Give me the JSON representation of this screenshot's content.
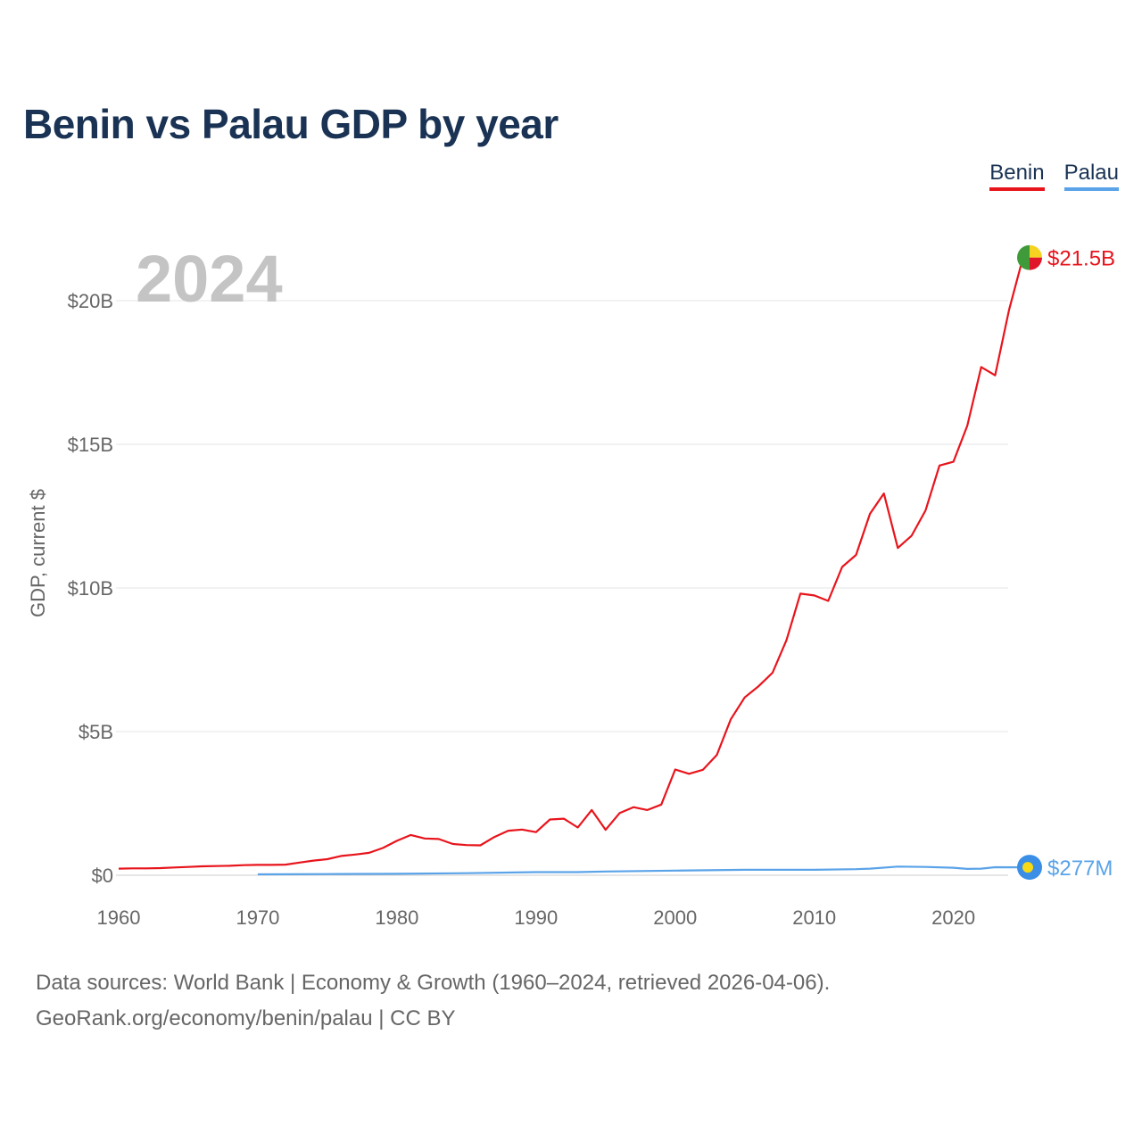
{
  "chart_data": {
    "type": "line",
    "title": "Benin vs Palau GDP by year",
    "ylabel": "GDP, current $",
    "xlabel": "",
    "highlight_year": "2024",
    "xlim": [
      1960,
      2024
    ],
    "ylim": [
      0,
      22000000000
    ],
    "x_ticks": [
      {
        "value": 1960,
        "label": "1960"
      },
      {
        "value": 1970,
        "label": "1970"
      },
      {
        "value": 1980,
        "label": "1980"
      },
      {
        "value": 1990,
        "label": "1990"
      },
      {
        "value": 2000,
        "label": "2000"
      },
      {
        "value": 2010,
        "label": "2010"
      },
      {
        "value": 2020,
        "label": "2020"
      }
    ],
    "y_ticks": [
      {
        "value": 0,
        "label": "$0"
      },
      {
        "value": 5000000000,
        "label": "$5B"
      },
      {
        "value": 10000000000,
        "label": "$10B"
      },
      {
        "value": 15000000000,
        "label": "$15B"
      },
      {
        "value": 20000000000,
        "label": "$20B"
      }
    ],
    "series": [
      {
        "name": "Benin",
        "color": "#e8141c",
        "end_label": "$21.5B",
        "marker": "benin-flag-icon",
        "points": [
          [
            1960,
            0.23
          ],
          [
            1961,
            0.24
          ],
          [
            1962,
            0.24
          ],
          [
            1963,
            0.25
          ],
          [
            1964,
            0.27
          ],
          [
            1965,
            0.29
          ],
          [
            1966,
            0.31
          ],
          [
            1967,
            0.32
          ],
          [
            1968,
            0.33
          ],
          [
            1969,
            0.35
          ],
          [
            1970,
            0.36
          ],
          [
            1971,
            0.36
          ],
          [
            1972,
            0.37
          ],
          [
            1973,
            0.44
          ],
          [
            1974,
            0.51
          ],
          [
            1975,
            0.56
          ],
          [
            1976,
            0.67
          ],
          [
            1977,
            0.72
          ],
          [
            1978,
            0.78
          ],
          [
            1979,
            0.95
          ],
          [
            1980,
            1.2
          ],
          [
            1981,
            1.4
          ],
          [
            1982,
            1.28
          ],
          [
            1983,
            1.26
          ],
          [
            1984,
            1.09
          ],
          [
            1985,
            1.05
          ],
          [
            1986,
            1.04
          ],
          [
            1987,
            1.33
          ],
          [
            1988,
            1.55
          ],
          [
            1989,
            1.59
          ],
          [
            1990,
            1.5
          ],
          [
            1991,
            1.94
          ],
          [
            1992,
            1.97
          ],
          [
            1993,
            1.66
          ],
          [
            1994,
            2.27
          ],
          [
            1995,
            1.58
          ],
          [
            1996,
            2.16
          ],
          [
            1997,
            2.37
          ],
          [
            1998,
            2.27
          ],
          [
            1999,
            2.46
          ],
          [
            2000,
            3.68
          ],
          [
            2001,
            3.53
          ],
          [
            2002,
            3.67
          ],
          [
            2003,
            4.19
          ],
          [
            2004,
            5.43
          ],
          [
            2005,
            6.19
          ],
          [
            2006,
            6.58
          ],
          [
            2007,
            7.05
          ],
          [
            2008,
            8.18
          ],
          [
            2009,
            9.8
          ],
          [
            2010,
            9.74
          ],
          [
            2011,
            9.55
          ],
          [
            2012,
            10.73
          ],
          [
            2013,
            11.15
          ],
          [
            2014,
            12.58
          ],
          [
            2015,
            13.29
          ],
          [
            2016,
            11.39
          ],
          [
            2017,
            11.82
          ],
          [
            2018,
            12.7
          ],
          [
            2019,
            14.26
          ],
          [
            2020,
            14.39
          ],
          [
            2021,
            15.65
          ],
          [
            2022,
            17.69
          ],
          [
            2023,
            17.4
          ],
          [
            2024,
            19.68
          ],
          [
            2025,
            21.5
          ]
        ]
      },
      {
        "name": "Palau",
        "color": "#5aa3e8",
        "end_label": "$277M",
        "marker": "palau-flag-icon",
        "points": [
          [
            1970,
            0.03
          ],
          [
            1975,
            0.04
          ],
          [
            1980,
            0.05
          ],
          [
            1985,
            0.07
          ],
          [
            1990,
            0.11
          ],
          [
            1993,
            0.11
          ],
          [
            1995,
            0.13
          ],
          [
            2000,
            0.16
          ],
          [
            2005,
            0.19
          ],
          [
            2008,
            0.19
          ],
          [
            2010,
            0.19
          ],
          [
            2013,
            0.21
          ],
          [
            2014,
            0.23
          ],
          [
            2016,
            0.3
          ],
          [
            2018,
            0.29
          ],
          [
            2020,
            0.26
          ],
          [
            2021,
            0.22
          ],
          [
            2022,
            0.23
          ],
          [
            2023,
            0.28
          ],
          [
            2025,
            0.277
          ]
        ]
      }
    ]
  },
  "legend": {
    "benin": "Benin",
    "palau": "Palau"
  },
  "footer": {
    "sources": "Data sources: World Bank | Economy & Growth (1960–2024, retrieved 2026-04-06).",
    "link": "GeoRank.org/economy/benin/palau",
    "separator": " | ",
    "license": "CC BY"
  }
}
